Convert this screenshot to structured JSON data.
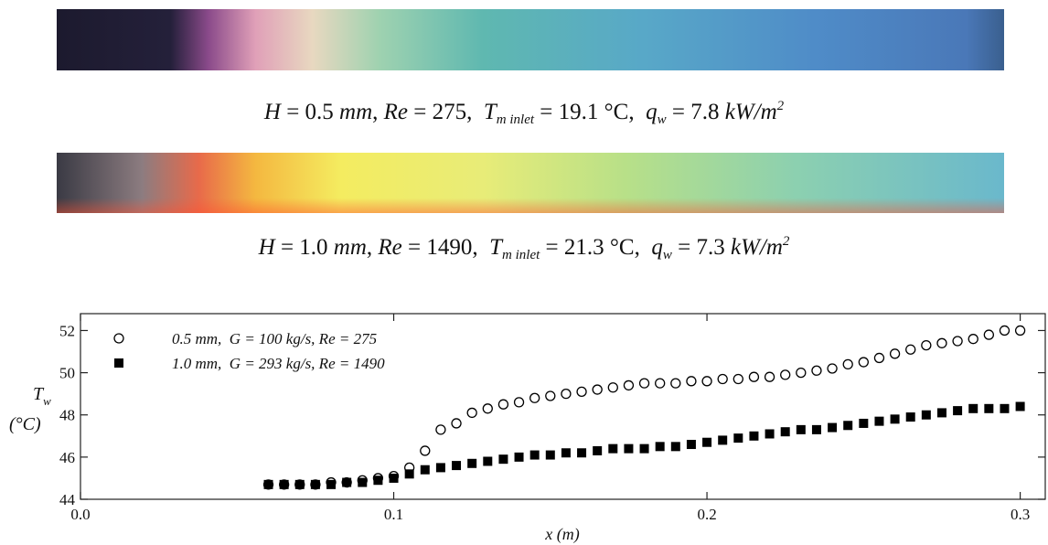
{
  "panels": [
    {
      "caption": [
        "H",
        " = 0.5 ",
        "mm",
        ", ",
        "Re",
        " = 275,  ",
        "T",
        "m inlet",
        " = 19.1 °C,  ",
        "q",
        "w",
        " = 7.8 ",
        "kW/m",
        "2"
      ]
    },
    {
      "caption": [
        "H",
        " = 1.0 ",
        "mm",
        ", ",
        "Re",
        " = 1490,  ",
        "T",
        "m inlet",
        " = 21.3 °C,  ",
        "q",
        "w",
        " = 7.3 ",
        "kW/m",
        "2"
      ]
    }
  ],
  "chart_data": {
    "type": "scatter",
    "x_label": "x (m)",
    "y_label": [
      "T",
      "w",
      "(°C)"
    ],
    "xlim": [
      0,
      0.308
    ],
    "ylim": [
      44,
      52.8
    ],
    "xticks": [
      {
        "value": 0,
        "label": "0.0"
      },
      0.1,
      0.2,
      0.3
    ],
    "yticks": [
      44,
      46,
      48,
      50,
      52
    ],
    "x": [
      0.06,
      0.065,
      0.07,
      0.075,
      0.08,
      0.085,
      0.09,
      0.095,
      0.1,
      0.105,
      0.11,
      0.115,
      0.12,
      0.125,
      0.13,
      0.135,
      0.14,
      0.145,
      0.15,
      0.155,
      0.16,
      0.165,
      0.17,
      0.175,
      0.18,
      0.185,
      0.19,
      0.195,
      0.2,
      0.205,
      0.21,
      0.215,
      0.22,
      0.225,
      0.23,
      0.235,
      0.24,
      0.245,
      0.25,
      0.255,
      0.26,
      0.265,
      0.27,
      0.275,
      0.28,
      0.285,
      0.29,
      0.295,
      0.3
    ],
    "series": [
      {
        "name": "0.5 mm,  G = 100 kg/s, Re = 275",
        "color": "#000000",
        "marker": "open-circle",
        "values": [
          44.7,
          44.7,
          44.7,
          44.7,
          44.8,
          44.8,
          44.9,
          45.0,
          45.1,
          45.5,
          46.3,
          47.3,
          47.6,
          48.1,
          48.3,
          48.5,
          48.6,
          48.8,
          48.9,
          49.0,
          49.1,
          49.2,
          49.3,
          49.4,
          49.5,
          49.5,
          49.5,
          49.6,
          49.6,
          49.7,
          49.7,
          49.8,
          49.8,
          49.9,
          50.0,
          50.1,
          50.2,
          50.4,
          50.5,
          50.7,
          50.9,
          51.1,
          51.3,
          51.4,
          51.5,
          51.6,
          51.8,
          52.0,
          52.0
        ]
      },
      {
        "name": "1.0 mm,  G = 293 kg/s, Re = 1490",
        "color": "#000000",
        "marker": "filled-square",
        "values": [
          44.7,
          44.7,
          44.7,
          44.7,
          44.7,
          44.8,
          44.8,
          44.9,
          45.0,
          45.2,
          45.4,
          45.5,
          45.6,
          45.7,
          45.8,
          45.9,
          46.0,
          46.1,
          46.1,
          46.2,
          46.2,
          46.3,
          46.4,
          46.4,
          46.4,
          46.5,
          46.5,
          46.6,
          46.7,
          46.8,
          46.9,
          47.0,
          47.1,
          47.2,
          47.3,
          47.3,
          47.4,
          47.5,
          47.6,
          47.7,
          47.8,
          47.9,
          48.0,
          48.1,
          48.2,
          48.3,
          48.3,
          48.3,
          48.4
        ]
      }
    ]
  }
}
